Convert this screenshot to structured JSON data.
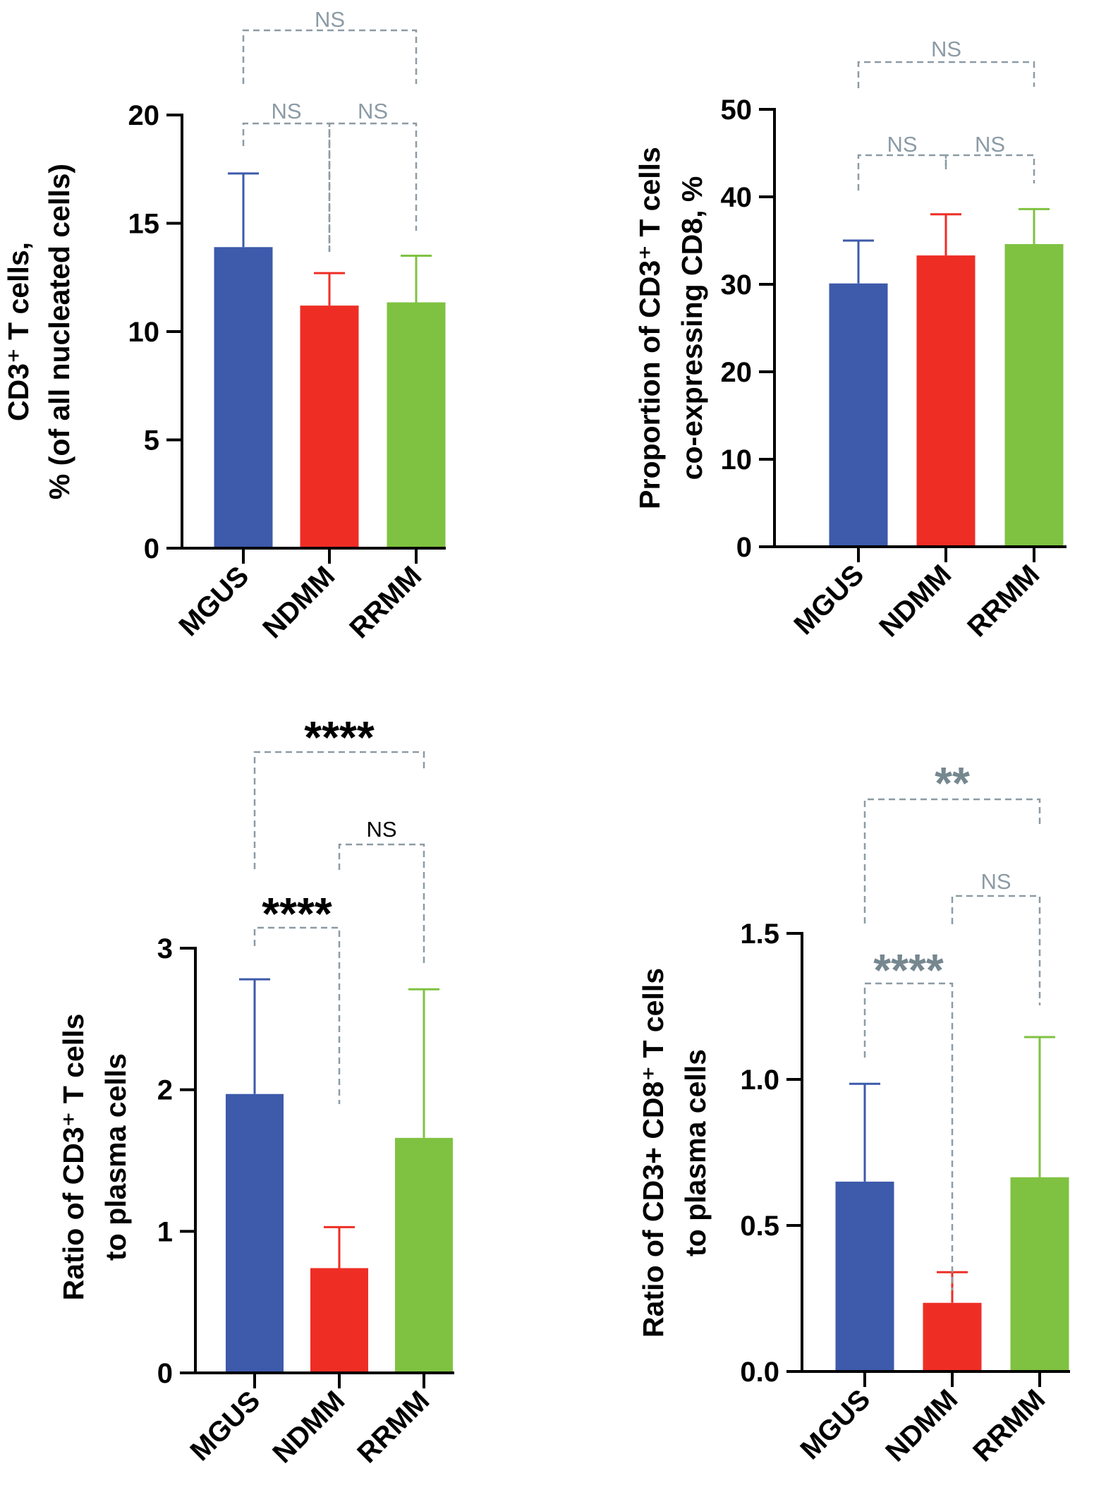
{
  "figure": {
    "panels_count": 4,
    "categories": [
      "MGUS",
      "NDMM",
      "RRMM"
    ],
    "colors": {
      "MGUS": "#3d5aab",
      "NDMM": "#ee2e25",
      "RRMM": "#7fc241",
      "axis": "#000000",
      "bracket": "#8c9ba5",
      "sig_dark": "#000000",
      "sig_gray": "#76878f"
    }
  },
  "chart_data": [
    {
      "type": "bar",
      "panel": "top-left",
      "categories": [
        "MGUS",
        "NDMM",
        "RRMM"
      ],
      "values": [
        13.9,
        11.2,
        11.35
      ],
      "error_upper": [
        17.3,
        12.7,
        13.5
      ],
      "ylim": [
        0,
        20
      ],
      "yticks": [
        0,
        5,
        10,
        15,
        20
      ],
      "ytick_labels": [
        "0",
        "5",
        "10",
        "15",
        "20"
      ],
      "ylabel_lines": [
        "CD3⁺ T cells,",
        "% (of all nucleated cells)"
      ],
      "xlabel": "",
      "comparisons": [
        {
          "groups": [
            "MGUS",
            "RRMM"
          ],
          "label": "NS",
          "style": "ns"
        },
        {
          "groups": [
            "MGUS",
            "NDMM"
          ],
          "label": "NS",
          "style": "ns"
        },
        {
          "groups": [
            "NDMM",
            "RRMM"
          ],
          "label": "NS",
          "style": "ns"
        }
      ]
    },
    {
      "type": "bar",
      "panel": "top-right",
      "categories": [
        "MGUS",
        "NDMM",
        "RRMM"
      ],
      "values": [
        30.1,
        33.3,
        34.6
      ],
      "error_upper": [
        35.0,
        38.0,
        38.6
      ],
      "ylim": [
        0,
        50
      ],
      "yticks": [
        0,
        10,
        20,
        30,
        40,
        50
      ],
      "ytick_labels": [
        "0",
        "10",
        "20",
        "30",
        "40",
        "50"
      ],
      "ylabel_lines": [
        "Proportion of CD3⁺ T cells",
        "co-expressing CD8, %"
      ],
      "xlabel": "",
      "comparisons": [
        {
          "groups": [
            "MGUS",
            "RRMM"
          ],
          "label": "NS",
          "style": "ns"
        },
        {
          "groups": [
            "MGUS",
            "NDMM"
          ],
          "label": "NS",
          "style": "ns"
        },
        {
          "groups": [
            "NDMM",
            "RRMM"
          ],
          "label": "NS",
          "style": "ns"
        }
      ]
    },
    {
      "type": "bar",
      "panel": "bottom-left",
      "categories": [
        "MGUS",
        "NDMM",
        "RRMM"
      ],
      "values": [
        1.97,
        0.74,
        1.66
      ],
      "error_upper": [
        2.78,
        1.03,
        2.71
      ],
      "ylim": [
        0,
        3
      ],
      "yticks": [
        0,
        1,
        2,
        3
      ],
      "ytick_labels": [
        "0",
        "1",
        "2",
        "3"
      ],
      "ylabel_lines": [
        "Ratio of CD3⁺ T cells",
        "to plasma cells"
      ],
      "xlabel": "",
      "comparisons": [
        {
          "groups": [
            "MGUS",
            "RRMM"
          ],
          "label": "****",
          "style": "star-dark"
        },
        {
          "groups": [
            "NDMM",
            "RRMM"
          ],
          "label": "NS",
          "style": "ns-dark"
        },
        {
          "groups": [
            "MGUS",
            "NDMM"
          ],
          "label": "****",
          "style": "star-dark"
        }
      ]
    },
    {
      "type": "bar",
      "panel": "bottom-right",
      "categories": [
        "MGUS",
        "NDMM",
        "RRMM"
      ],
      "values": [
        0.65,
        0.235,
        0.665
      ],
      "error_upper": [
        0.985,
        0.34,
        1.145
      ],
      "ylim": [
        0,
        1.5
      ],
      "yticks": [
        0,
        0.5,
        1.0,
        1.5
      ],
      "ytick_labels": [
        "0.0",
        "0.5",
        "1.0",
        "1.5"
      ],
      "ylabel_lines": [
        "Ratio of CD3+ CD8⁺ T cells",
        "to plasma cells"
      ],
      "xlabel": "",
      "comparisons": [
        {
          "groups": [
            "MGUS",
            "RRMM"
          ],
          "label": "**",
          "style": "star-gray"
        },
        {
          "groups": [
            "NDMM",
            "RRMM"
          ],
          "label": "NS",
          "style": "ns"
        },
        {
          "groups": [
            "MGUS",
            "NDMM"
          ],
          "label": "****",
          "style": "star-gray"
        }
      ]
    }
  ]
}
